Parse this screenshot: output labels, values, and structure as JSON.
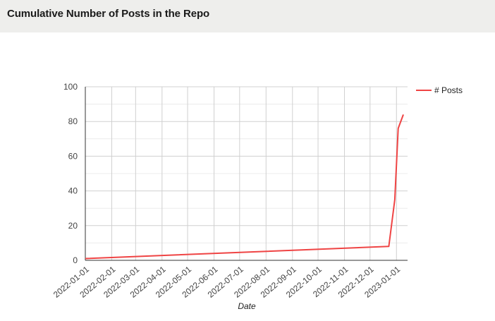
{
  "page": {
    "title": "Cumulative Number of Posts in the Repo"
  },
  "chart_data": {
    "type": "line",
    "title": "Cumulative Number of Posts in the Repo",
    "xlabel": "Date",
    "ylabel": "",
    "ylim": [
      0,
      100
    ],
    "yticks": [
      0,
      20,
      40,
      60,
      80,
      100
    ],
    "xlim": [
      "2022-01-01",
      "2023-01-14"
    ],
    "xticks": [
      "2022-01-01",
      "2022-02-01",
      "2022-03-01",
      "2022-04-01",
      "2022-05-01",
      "2022-06-01",
      "2022-07-01",
      "2022-08-01",
      "2022-09-01",
      "2022-10-01",
      "2022-11-01",
      "2022-12-01",
      "2023-01-01"
    ],
    "grid": true,
    "legend": "right",
    "series": [
      {
        "name": "# Posts",
        "color": "#ef4444",
        "points": [
          {
            "x": "2022-01-01",
            "y": 1
          },
          {
            "x": "2022-12-23",
            "y": 8
          },
          {
            "x": "2022-12-30",
            "y": 35
          },
          {
            "x": "2023-01-03",
            "y": 76
          },
          {
            "x": "2023-01-09",
            "y": 84
          }
        ]
      }
    ]
  }
}
